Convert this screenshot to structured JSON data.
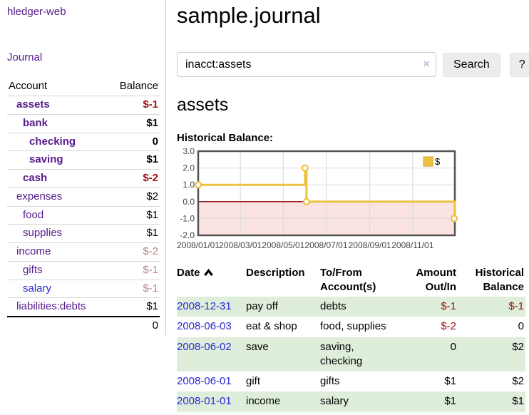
{
  "brand": "hledger-web",
  "nav": {
    "journal": "Journal"
  },
  "sidebar": {
    "header": {
      "account": "Account",
      "balance": "Balance"
    },
    "accounts": [
      {
        "name": "assets",
        "indent": 1,
        "balance": "$-1",
        "bold": true,
        "balance_class": "neg-strong",
        "link_class": ""
      },
      {
        "name": "bank",
        "indent": 2,
        "balance": "$1",
        "bold": true,
        "balance_class": "",
        "link_class": ""
      },
      {
        "name": "checking",
        "indent": 3,
        "balance": "0",
        "bold": true,
        "balance_class": "",
        "link_class": ""
      },
      {
        "name": "saving",
        "indent": 3,
        "balance": "$1",
        "bold": true,
        "balance_class": "",
        "link_class": ""
      },
      {
        "name": "cash",
        "indent": 2,
        "balance": "$-2",
        "bold": true,
        "balance_class": "neg-strong",
        "link_class": ""
      },
      {
        "name": "expenses",
        "indent": 1,
        "balance": "$2",
        "bold": false,
        "balance_class": "",
        "link_class": ""
      },
      {
        "name": "food",
        "indent": 2,
        "balance": "$1",
        "bold": false,
        "balance_class": "",
        "link_class": ""
      },
      {
        "name": "supplies",
        "indent": 2,
        "balance": "$1",
        "bold": false,
        "balance_class": "",
        "link_class": ""
      },
      {
        "name": "income",
        "indent": 1,
        "balance": "$-2",
        "bold": false,
        "balance_class": "neg-muted",
        "link_class": ""
      },
      {
        "name": "gifts",
        "indent": 2,
        "balance": "$-1",
        "bold": false,
        "balance_class": "neg-muted",
        "link_class": ""
      },
      {
        "name": "salary",
        "indent": 2,
        "balance": "$-1",
        "bold": false,
        "balance_class": "neg-muted",
        "link_class": "blue"
      },
      {
        "name": "liabilities:debts",
        "indent": 1,
        "balance": "$1",
        "bold": false,
        "balance_class": "",
        "link_class": ""
      }
    ],
    "total": "0"
  },
  "main": {
    "title": "sample.journal",
    "search": {
      "value": "inacct:assets",
      "clear": "×",
      "search_button": "Search",
      "help_button": "?"
    },
    "account_heading": "assets",
    "chart_title": "Historical Balance:"
  },
  "chart_data": {
    "type": "line",
    "title": "Historical Balance:",
    "step": true,
    "x_range": [
      "2008-01-01",
      "2008-12-31"
    ],
    "ylim": [
      -2,
      3
    ],
    "y_ticks": [
      3.0,
      2.0,
      1.0,
      0.0,
      -1.0,
      -2.0
    ],
    "x_ticks": [
      "2008/01/01",
      "2008/03/01",
      "2008/05/01",
      "2008/07/01",
      "2008/09/01",
      "2008/11/01"
    ],
    "grid": true,
    "legend": {
      "label": "$",
      "position": "top-right"
    },
    "series": [
      {
        "name": "$",
        "color": "#edc240",
        "points": [
          {
            "x": "2008-01-01",
            "y": 1.0
          },
          {
            "x": "2008-06-01",
            "y": 2.0
          },
          {
            "x": "2008-06-03",
            "y": 0.0
          },
          {
            "x": "2008-12-31",
            "y": -1.0
          }
        ]
      }
    ],
    "negative_region_color": "#fbe3e3",
    "zero_line_color": "#8b0000",
    "gridline_color": "#d9d9d9",
    "border_color": "#545454"
  },
  "register": {
    "columns": {
      "date": "Date",
      "description": "Description",
      "accounts": "To/From Account(s)",
      "amount": "Amount Out/In",
      "balance": "Historical Balance"
    },
    "rows": [
      {
        "date": "2008-12-31",
        "description": "pay off",
        "accounts": "debts",
        "amount": "$-1",
        "amount_neg": true,
        "balance": "$-1",
        "balance_neg": true
      },
      {
        "date": "2008-06-03",
        "description": "eat & shop",
        "accounts": "food, supplies",
        "amount": "$-2",
        "amount_neg": true,
        "balance": "0",
        "balance_neg": false
      },
      {
        "date": "2008-06-02",
        "description": "save",
        "accounts": "saving, checking",
        "amount": "0",
        "amount_neg": false,
        "balance": "$2",
        "balance_neg": false
      },
      {
        "date": "2008-06-01",
        "description": "gift",
        "accounts": "gifts",
        "amount": "$1",
        "amount_neg": false,
        "balance": "$2",
        "balance_neg": false
      },
      {
        "date": "2008-01-01",
        "description": "income",
        "accounts": "salary",
        "amount": "$1",
        "amount_neg": false,
        "balance": "$1",
        "balance_neg": false
      }
    ]
  },
  "colors": {
    "link_purple": "#551a8b",
    "link_blue": "#2a2ad4",
    "negative_strong": "#9e1212",
    "negative_muted": "#b98484",
    "row_stripe_green": "#deeeda",
    "chart_line_gold": "#edc240",
    "chart_negative_pink": "#fbe3e3",
    "chart_zero_line": "#8b0000"
  }
}
